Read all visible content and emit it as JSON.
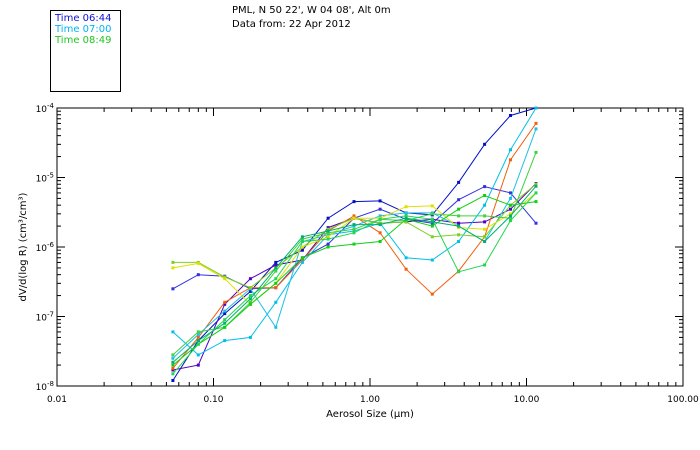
{
  "header": {
    "station": "PML, N 50 22', W 04 08', Alt 0m",
    "data_from": "Data from: 22 Apr 2012"
  },
  "legend": [
    {
      "label": "Time 06:44",
      "color": "#1010d8"
    },
    {
      "label": "Time 07:00",
      "color": "#00b4f0"
    },
    {
      "label": "Time 08:49",
      "color": "#20c820"
    }
  ],
  "chart_data": {
    "type": "line",
    "xscale": "log",
    "yscale": "log",
    "xlim": [
      0.01,
      100
    ],
    "ylim": [
      1e-08,
      0.0001
    ],
    "xlabel": "Aerosol Size (µm)",
    "ylabel": "dV/d(log R) (cm³/cm³)",
    "x_ticks": [
      {
        "value": 0.01,
        "label": "0.01"
      },
      {
        "value": 0.1,
        "label": "0.10"
      },
      {
        "value": 1,
        "label": "1.00"
      },
      {
        "value": 10,
        "label": "10.00"
      },
      {
        "value": 100,
        "label": "100.00"
      }
    ],
    "y_ticks": [
      {
        "value": 1e-08,
        "base": "10",
        "exp": "-8"
      },
      {
        "value": 1e-07,
        "base": "10",
        "exp": "-7"
      },
      {
        "value": 1e-06,
        "base": "10",
        "exp": "-6"
      },
      {
        "value": 1e-05,
        "base": "10",
        "exp": "-5"
      },
      {
        "value": 0.0001,
        "base": "10",
        "exp": "-4"
      }
    ],
    "x": [
      0.055,
      0.08,
      0.118,
      0.172,
      0.25,
      0.37,
      0.54,
      0.79,
      1.16,
      1.7,
      2.5,
      3.68,
      5.4,
      7.9,
      11.5
    ],
    "series": [
      {
        "color": "#0010c8",
        "values": [
          1.2e-08,
          4.5e-08,
          1.1e-07,
          2.3e-07,
          6e-07,
          9e-07,
          2.6e-06,
          4.5e-06,
          4.6e-06,
          3.1e-06,
          2.9e-06,
          8.5e-06,
          3e-05,
          7.8e-05,
          0.0001
        ]
      },
      {
        "color": "#3030e0",
        "values": [
          2.5e-07,
          4e-07,
          3.8e-07,
          2.5e-07,
          2.6e-07,
          7e-07,
          1.1e-06,
          2.6e-06,
          3.5e-06,
          2.5e-06,
          2.2e-06,
          4.8e-06,
          7.4e-06,
          6e-06,
          2.2e-06
        ]
      },
      {
        "color": "#5000c0",
        "values": [
          1.7e-08,
          2e-08,
          1.5e-07,
          3.5e-07,
          5.5e-07,
          6.5e-07,
          1.9e-06,
          2.6e-06,
          2.2e-06,
          2.3e-06,
          2.5e-06,
          2.2e-06,
          2.3e-06,
          3.5e-06,
          8.2e-06
        ]
      },
      {
        "color": "#f06010",
        "values": [
          1.8e-08,
          5e-08,
          1.6e-07,
          2.6e-07,
          2.6e-07,
          6.5e-07,
          1.7e-06,
          2.8e-06,
          1.6e-06,
          4.8e-07,
          2.1e-07,
          4.5e-07,
          1.4e-06,
          1.8e-05,
          6e-05
        ]
      },
      {
        "color": "#00c0e8",
        "values": [
          6e-08,
          2.8e-08,
          4.5e-08,
          5e-08,
          1.6e-07,
          6e-07,
          1.5e-06,
          1.7e-06,
          2.2e-06,
          7e-07,
          6.5e-07,
          1.2e-06,
          4e-06,
          2.5e-05,
          0.0001
        ]
      },
      {
        "color": "#20c0e0",
        "values": [
          2.5e-08,
          5.5e-08,
          1.2e-07,
          2.5e-07,
          7e-08,
          1.2e-06,
          1.5e-06,
          2e-06,
          2.8e-06,
          3.1e-06,
          3.1e-06,
          2e-06,
          1.2e-06,
          5e-06,
          5e-05
        ]
      },
      {
        "color": "#80d020",
        "values": [
          6e-07,
          6e-07,
          3.7e-07,
          2.6e-07,
          5e-07,
          1e-06,
          1.8e-06,
          2.6e-06,
          2.2e-06,
          2.3e-06,
          1.4e-06,
          1.5e-06,
          1.4e-06,
          4e-06,
          8e-06
        ]
      },
      {
        "color": "#e0e000",
        "values": [
          5e-07,
          5.8e-07,
          3.5e-07,
          1.5e-07,
          3e-07,
          1e-06,
          1.4e-06,
          2.6e-06,
          2.6e-06,
          3.8e-06,
          3.9e-06,
          1.9e-06,
          1.8e-06,
          3e-06,
          6e-06
        ]
      },
      {
        "color": "#40d040",
        "values": [
          2.8e-08,
          6e-08,
          7e-08,
          1.6e-07,
          4.5e-07,
          1.3e-06,
          1.6e-06,
          1.8e-06,
          2.5e-06,
          2.4e-06,
          3e-06,
          2.8e-06,
          2.8e-06,
          2.6e-06,
          2.3e-05
        ]
      },
      {
        "color": "#10d010",
        "values": [
          2e-08,
          4e-08,
          7e-08,
          1.5e-07,
          3e-07,
          7e-07,
          1e-06,
          1.1e-06,
          1.2e-06,
          2.5e-06,
          2e-06,
          3.5e-06,
          5.5e-06,
          4e-06,
          4.5e-06
        ]
      },
      {
        "color": "#20d850",
        "values": [
          1.5e-08,
          4e-08,
          9e-08,
          2e-07,
          3.5e-07,
          1.2e-06,
          1.3e-06,
          1.6e-06,
          2.5e-06,
          2.8e-06,
          2.5e-06,
          4.4e-07,
          5.5e-07,
          2.4e-06,
          6e-06
        ]
      },
      {
        "color": "#00b070",
        "values": [
          2.2e-08,
          4.5e-08,
          8e-08,
          1.8e-07,
          5e-07,
          1.4e-06,
          1.7e-06,
          2.1e-06,
          2.1e-06,
          2.6e-06,
          2.3e-06,
          2e-06,
          1.2e-06,
          2.8e-06,
          7.5e-06
        ]
      }
    ]
  }
}
